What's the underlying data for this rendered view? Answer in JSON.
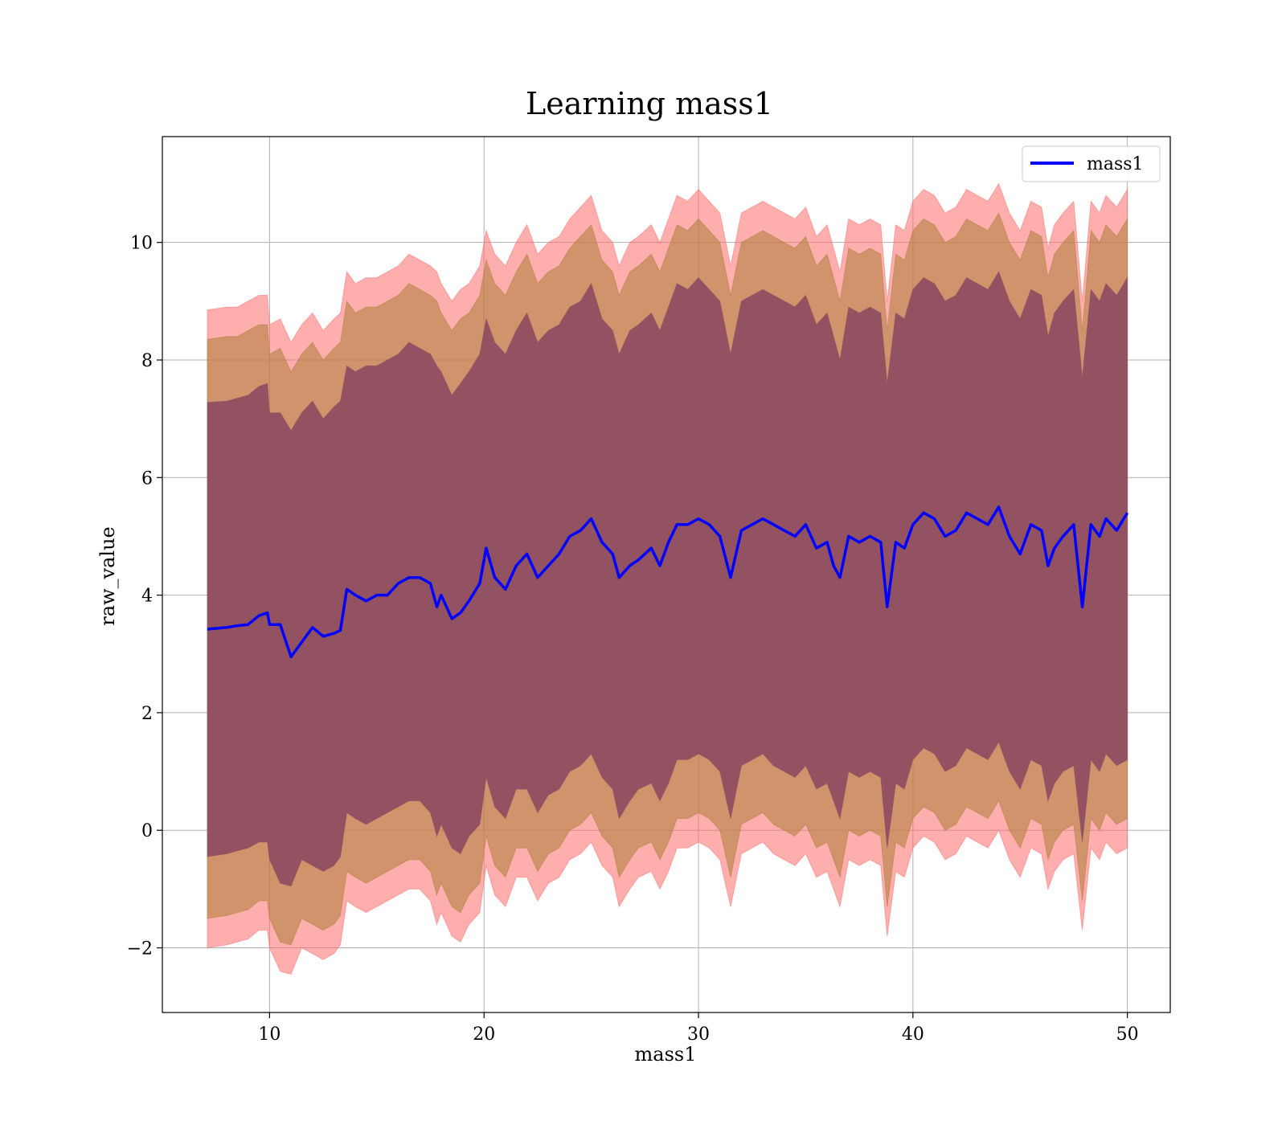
{
  "chart_data": {
    "type": "line",
    "title": "Learning mass1",
    "xlabel": "mass1",
    "ylabel": "raw_value",
    "xlim": [
      5,
      52
    ],
    "ylim": [
      -3.1,
      11.8
    ],
    "xticks": [
      10,
      20,
      30,
      40,
      50
    ],
    "yticks": [
      -2,
      0,
      2,
      4,
      6,
      8,
      10
    ],
    "xtick_labels": [
      "10",
      "20",
      "30",
      "40",
      "50"
    ],
    "ytick_labels": [
      "−2",
      "0",
      "2",
      "4",
      "6",
      "8",
      "10"
    ],
    "grid": true,
    "legend": {
      "placement": "top-right",
      "entries": [
        "mass1"
      ]
    },
    "colors": {
      "mean_line": "#0000ff",
      "band_outer": "#ff6b6b",
      "band_middle": "#b08040",
      "band_inner": "#8b4b62"
    },
    "series": [
      {
        "name": "mass1",
        "style": "line",
        "x": [
          7.1,
          8.0,
          8.5,
          9.0,
          9.5,
          9.9,
          10.0,
          10.5,
          11.0,
          11.5,
          12.0,
          12.5,
          13.0,
          13.3,
          13.6,
          14.0,
          14.5,
          15.0,
          15.5,
          16.0,
          16.5,
          17.0,
          17.5,
          17.8,
          18.0,
          18.5,
          18.9,
          19.3,
          19.8,
          20.1,
          20.5,
          21.0,
          21.5,
          22.0,
          22.5,
          23.0,
          23.5,
          24.0,
          24.5,
          25.0,
          25.5,
          26.0,
          26.3,
          26.8,
          27.2,
          27.8,
          28.2,
          28.6,
          29.0,
          29.5,
          30.0,
          30.5,
          31.0,
          31.5,
          32.0,
          32.5,
          33.0,
          33.5,
          34.0,
          34.5,
          35.0,
          35.5,
          36.0,
          36.3,
          36.6,
          37.0,
          37.5,
          38.0,
          38.5,
          38.8,
          39.2,
          39.6,
          40.0,
          40.5,
          41.0,
          41.5,
          42.0,
          42.5,
          43.0,
          43.5,
          44.0,
          44.5,
          45.0,
          45.5,
          46.0,
          46.3,
          46.6,
          47.0,
          47.5,
          47.9,
          48.3,
          48.7,
          49.0,
          49.5,
          50.0
        ],
        "y": [
          3.42,
          3.45,
          3.48,
          3.5,
          3.65,
          3.7,
          3.5,
          3.5,
          2.95,
          3.2,
          3.45,
          3.3,
          3.35,
          3.4,
          4.1,
          4.0,
          3.9,
          4.0,
          4.0,
          4.2,
          4.3,
          4.3,
          4.2,
          3.8,
          4.0,
          3.6,
          3.7,
          3.9,
          4.2,
          4.8,
          4.3,
          4.1,
          4.5,
          4.7,
          4.3,
          4.5,
          4.7,
          5.0,
          5.1,
          5.3,
          4.9,
          4.7,
          4.3,
          4.5,
          4.6,
          4.8,
          4.5,
          4.9,
          5.2,
          5.2,
          5.3,
          5.2,
          5.0,
          4.3,
          5.1,
          5.2,
          5.3,
          5.2,
          5.1,
          5.0,
          5.2,
          4.8,
          4.9,
          4.5,
          4.3,
          5.0,
          4.9,
          5.0,
          4.9,
          3.8,
          4.9,
          4.8,
          5.2,
          5.4,
          5.3,
          5.0,
          5.1,
          5.4,
          5.3,
          5.2,
          5.5,
          5.0,
          4.7,
          5.2,
          5.1,
          4.5,
          4.8,
          5.0,
          5.2,
          3.8,
          5.2,
          5.0,
          5.3,
          5.1,
          5.4
        ]
      },
      {
        "name": "",
        "style": "band",
        "band": "outer",
        "x": [
          7.1,
          8.0,
          8.5,
          9.0,
          9.5,
          9.9,
          10.0,
          10.5,
          11.0,
          11.5,
          12.0,
          12.5,
          13.0,
          13.3,
          13.6,
          14.0,
          14.5,
          15.0,
          15.5,
          16.0,
          16.5,
          17.0,
          17.5,
          17.8,
          18.0,
          18.5,
          18.9,
          19.3,
          19.8,
          20.1,
          20.5,
          21.0,
          21.5,
          22.0,
          22.5,
          23.0,
          23.5,
          24.0,
          24.5,
          25.0,
          25.5,
          26.0,
          26.3,
          26.8,
          27.2,
          27.8,
          28.2,
          28.6,
          29.0,
          29.5,
          30.0,
          30.5,
          31.0,
          31.5,
          32.0,
          32.5,
          33.0,
          33.5,
          34.0,
          34.5,
          35.0,
          35.5,
          36.0,
          36.3,
          36.6,
          37.0,
          37.5,
          38.0,
          38.5,
          38.8,
          39.2,
          39.6,
          40.0,
          40.5,
          41.0,
          41.5,
          42.0,
          42.5,
          43.0,
          43.5,
          44.0,
          44.5,
          45.0,
          45.5,
          46.0,
          46.3,
          46.6,
          47.0,
          47.5,
          47.9,
          48.3,
          48.7,
          49.0,
          49.5,
          50.0
        ],
        "lower": [
          -2.0,
          -1.95,
          -1.9,
          -1.85,
          -1.7,
          -1.7,
          -2.0,
          -2.4,
          -2.45,
          -2.0,
          -2.1,
          -2.2,
          -2.1,
          -1.95,
          -1.2,
          -1.3,
          -1.4,
          -1.3,
          -1.2,
          -1.1,
          -1.0,
          -1.0,
          -1.2,
          -1.6,
          -1.4,
          -1.8,
          -1.9,
          -1.6,
          -1.4,
          -0.6,
          -1.1,
          -1.3,
          -0.8,
          -0.8,
          -1.2,
          -0.9,
          -0.8,
          -0.5,
          -0.4,
          -0.2,
          -0.6,
          -0.8,
          -1.3,
          -1.0,
          -0.8,
          -0.7,
          -1.0,
          -0.7,
          -0.3,
          -0.3,
          -0.2,
          -0.3,
          -0.5,
          -1.3,
          -0.4,
          -0.3,
          -0.2,
          -0.4,
          -0.5,
          -0.6,
          -0.4,
          -0.8,
          -0.7,
          -1.0,
          -1.3,
          -0.5,
          -0.6,
          -0.5,
          -0.6,
          -1.8,
          -0.7,
          -0.8,
          -0.3,
          -0.1,
          -0.2,
          -0.5,
          -0.4,
          -0.1,
          -0.2,
          -0.3,
          0.0,
          -0.5,
          -0.8,
          -0.3,
          -0.4,
          -1.0,
          -0.7,
          -0.5,
          -0.4,
          -1.7,
          -0.3,
          -0.5,
          -0.2,
          -0.4,
          -0.3
        ],
        "upper": [
          8.85,
          8.9,
          8.9,
          9.0,
          9.1,
          9.1,
          8.6,
          8.7,
          8.3,
          8.6,
          8.8,
          8.5,
          8.7,
          8.8,
          9.5,
          9.3,
          9.4,
          9.4,
          9.5,
          9.6,
          9.8,
          9.7,
          9.6,
          9.5,
          9.3,
          9.0,
          9.2,
          9.3,
          9.6,
          10.2,
          9.8,
          9.6,
          10.0,
          10.3,
          9.8,
          10.0,
          10.1,
          10.4,
          10.6,
          10.8,
          10.2,
          10.0,
          9.6,
          10.0,
          10.1,
          10.3,
          10.0,
          10.4,
          10.8,
          10.7,
          10.9,
          10.7,
          10.5,
          9.6,
          10.5,
          10.6,
          10.7,
          10.6,
          10.5,
          10.4,
          10.6,
          10.1,
          10.3,
          9.9,
          9.5,
          10.4,
          10.3,
          10.4,
          10.3,
          9.0,
          10.3,
          10.2,
          10.7,
          10.9,
          10.8,
          10.5,
          10.6,
          10.9,
          10.8,
          10.7,
          11.0,
          10.5,
          10.2,
          10.7,
          10.6,
          9.9,
          10.3,
          10.5,
          10.7,
          9.0,
          10.7,
          10.5,
          10.8,
          10.6,
          10.9
        ]
      },
      {
        "name": "",
        "style": "band",
        "band": "middle",
        "x": [
          7.1,
          8.0,
          8.5,
          9.0,
          9.5,
          9.9,
          10.0,
          10.5,
          11.0,
          11.5,
          12.0,
          12.5,
          13.0,
          13.3,
          13.6,
          14.0,
          14.5,
          15.0,
          15.5,
          16.0,
          16.5,
          17.0,
          17.5,
          17.8,
          18.0,
          18.5,
          18.9,
          19.3,
          19.8,
          20.1,
          20.5,
          21.0,
          21.5,
          22.0,
          22.5,
          23.0,
          23.5,
          24.0,
          24.5,
          25.0,
          25.5,
          26.0,
          26.3,
          26.8,
          27.2,
          27.8,
          28.2,
          28.6,
          29.0,
          29.5,
          30.0,
          30.5,
          31.0,
          31.5,
          32.0,
          32.5,
          33.0,
          33.5,
          34.0,
          34.5,
          35.0,
          35.5,
          36.0,
          36.3,
          36.6,
          37.0,
          37.5,
          38.0,
          38.5,
          38.8,
          39.2,
          39.6,
          40.0,
          40.5,
          41.0,
          41.5,
          42.0,
          42.5,
          43.0,
          43.5,
          44.0,
          44.5,
          45.0,
          45.5,
          46.0,
          46.3,
          46.6,
          47.0,
          47.5,
          47.9,
          48.3,
          48.7,
          49.0,
          49.5,
          50.0
        ],
        "lower": [
          -1.5,
          -1.45,
          -1.4,
          -1.35,
          -1.2,
          -1.2,
          -1.5,
          -1.9,
          -1.95,
          -1.5,
          -1.6,
          -1.7,
          -1.6,
          -1.45,
          -0.7,
          -0.8,
          -0.9,
          -0.8,
          -0.7,
          -0.6,
          -0.5,
          -0.5,
          -0.7,
          -1.1,
          -0.9,
          -1.3,
          -1.4,
          -1.1,
          -0.9,
          -0.1,
          -0.6,
          -0.8,
          -0.3,
          -0.3,
          -0.7,
          -0.4,
          -0.3,
          0.0,
          0.1,
          0.3,
          -0.1,
          -0.3,
          -0.8,
          -0.5,
          -0.3,
          -0.2,
          -0.5,
          -0.2,
          0.2,
          0.2,
          0.3,
          0.2,
          0.0,
          -0.8,
          0.1,
          0.2,
          0.3,
          0.1,
          0.0,
          -0.1,
          0.1,
          -0.3,
          -0.2,
          -0.5,
          -0.8,
          0.0,
          -0.1,
          0.0,
          -0.1,
          -1.3,
          -0.2,
          -0.3,
          0.2,
          0.4,
          0.3,
          0.0,
          0.1,
          0.4,
          0.3,
          0.2,
          0.5,
          0.0,
          -0.3,
          0.2,
          0.1,
          -0.5,
          -0.2,
          0.0,
          0.1,
          -1.2,
          0.2,
          0.0,
          0.3,
          0.1,
          0.2
        ],
        "upper": [
          8.35,
          8.4,
          8.4,
          8.5,
          8.6,
          8.6,
          8.1,
          8.2,
          7.8,
          8.1,
          8.3,
          8.0,
          8.2,
          8.3,
          9.0,
          8.8,
          8.9,
          8.9,
          9.0,
          9.1,
          9.3,
          9.2,
          9.1,
          9.0,
          8.8,
          8.5,
          8.7,
          8.8,
          9.1,
          9.7,
          9.3,
          9.1,
          9.5,
          9.8,
          9.3,
          9.5,
          9.6,
          9.9,
          10.1,
          10.3,
          9.7,
          9.5,
          9.1,
          9.5,
          9.6,
          9.8,
          9.5,
          9.9,
          10.3,
          10.2,
          10.4,
          10.2,
          10.0,
          9.1,
          10.0,
          10.1,
          10.2,
          10.1,
          10.0,
          9.9,
          10.1,
          9.6,
          9.8,
          9.4,
          9.0,
          9.9,
          9.8,
          9.9,
          9.8,
          8.5,
          9.8,
          9.7,
          10.2,
          10.4,
          10.3,
          10.0,
          10.1,
          10.4,
          10.3,
          10.2,
          10.5,
          10.0,
          9.7,
          10.2,
          10.1,
          9.4,
          9.8,
          10.0,
          10.2,
          8.5,
          10.2,
          10.0,
          10.3,
          10.1,
          10.4
        ]
      },
      {
        "name": "",
        "style": "band",
        "band": "inner",
        "x": [
          7.1,
          8.0,
          8.5,
          9.0,
          9.5,
          9.9,
          10.0,
          10.5,
          11.0,
          11.5,
          12.0,
          12.5,
          13.0,
          13.3,
          13.6,
          14.0,
          14.5,
          15.0,
          15.5,
          16.0,
          16.5,
          17.0,
          17.5,
          17.8,
          18.0,
          18.5,
          18.9,
          19.3,
          19.8,
          20.1,
          20.5,
          21.0,
          21.5,
          22.0,
          22.5,
          23.0,
          23.5,
          24.0,
          24.5,
          25.0,
          25.5,
          26.0,
          26.3,
          26.8,
          27.2,
          27.8,
          28.2,
          28.6,
          29.0,
          29.5,
          30.0,
          30.5,
          31.0,
          31.5,
          32.0,
          32.5,
          33.0,
          33.5,
          34.0,
          34.5,
          35.0,
          35.5,
          36.0,
          36.3,
          36.6,
          37.0,
          37.5,
          38.0,
          38.5,
          38.8,
          39.2,
          39.6,
          40.0,
          40.5,
          41.0,
          41.5,
          42.0,
          42.5,
          43.0,
          43.5,
          44.0,
          44.5,
          45.0,
          45.5,
          46.0,
          46.3,
          46.6,
          47.0,
          47.5,
          47.9,
          48.3,
          48.7,
          49.0,
          49.5,
          50.0
        ],
        "lower": [
          -0.45,
          -0.4,
          -0.35,
          -0.3,
          -0.2,
          -0.2,
          -0.5,
          -0.9,
          -0.95,
          -0.5,
          -0.6,
          -0.7,
          -0.6,
          -0.45,
          0.3,
          0.2,
          0.1,
          0.2,
          0.3,
          0.4,
          0.5,
          0.5,
          0.3,
          -0.1,
          0.1,
          -0.3,
          -0.4,
          -0.1,
          0.1,
          0.9,
          0.4,
          0.2,
          0.7,
          0.7,
          0.3,
          0.6,
          0.7,
          1.0,
          1.1,
          1.3,
          0.9,
          0.7,
          0.2,
          0.5,
          0.7,
          0.8,
          0.5,
          0.8,
          1.2,
          1.2,
          1.3,
          1.2,
          1.0,
          0.2,
          1.1,
          1.2,
          1.3,
          1.1,
          1.0,
          0.9,
          1.1,
          0.7,
          0.8,
          0.5,
          0.2,
          1.0,
          0.9,
          1.0,
          0.9,
          -0.3,
          0.8,
          0.7,
          1.2,
          1.4,
          1.3,
          1.0,
          1.1,
          1.4,
          1.3,
          1.2,
          1.5,
          1.0,
          0.7,
          1.2,
          1.1,
          0.5,
          0.8,
          1.0,
          1.1,
          -0.2,
          1.2,
          1.0,
          1.3,
          1.1,
          1.2
        ],
        "upper": [
          7.28,
          7.3,
          7.35,
          7.4,
          7.55,
          7.6,
          7.1,
          7.1,
          6.8,
          7.1,
          7.3,
          7.0,
          7.2,
          7.3,
          7.9,
          7.8,
          7.9,
          7.9,
          8.0,
          8.1,
          8.3,
          8.2,
          8.1,
          7.9,
          7.8,
          7.4,
          7.6,
          7.8,
          8.1,
          8.7,
          8.3,
          8.1,
          8.5,
          8.8,
          8.3,
          8.5,
          8.6,
          8.9,
          9.0,
          9.3,
          8.7,
          8.5,
          8.1,
          8.5,
          8.6,
          8.8,
          8.5,
          8.9,
          9.3,
          9.2,
          9.4,
          9.2,
          9.0,
          8.1,
          9.0,
          9.1,
          9.2,
          9.1,
          9.0,
          8.9,
          9.1,
          8.6,
          8.8,
          8.4,
          8.0,
          8.9,
          8.8,
          8.9,
          8.8,
          7.6,
          8.8,
          8.7,
          9.2,
          9.4,
          9.3,
          9.0,
          9.1,
          9.4,
          9.3,
          9.2,
          9.5,
          9.0,
          8.7,
          9.2,
          9.1,
          8.4,
          8.8,
          9.0,
          9.2,
          7.7,
          9.2,
          9.0,
          9.3,
          9.1,
          9.4
        ]
      }
    ]
  }
}
